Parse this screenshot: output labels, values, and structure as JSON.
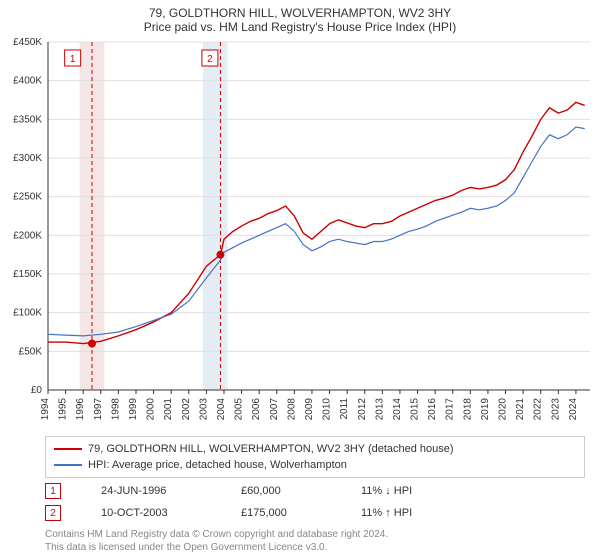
{
  "title": "79, GOLDTHORN HILL, WOLVERHAMPTON, WV2 3HY",
  "subtitle": "Price paid vs. HM Land Registry's House Price Index (HPI)",
  "chart": {
    "type": "line",
    "plot_bg": "#ffffff",
    "axis_color": "#333333",
    "grid_color": "#e0e0e0",
    "tick_fontsize": 10,
    "tick_color": "#333333",
    "ylim": [
      0,
      450
    ],
    "ytick_step": 50,
    "y_prefix": "£",
    "y_suffix": "K",
    "x_years": [
      1994,
      1995,
      1996,
      1997,
      1998,
      1999,
      2000,
      2001,
      2002,
      2003,
      2004,
      2005,
      2006,
      2007,
      2008,
      2009,
      2010,
      2011,
      2012,
      2013,
      2014,
      2015,
      2016,
      2017,
      2018,
      2019,
      2020,
      2021,
      2022,
      2023,
      2024
    ],
    "highlight_bands": [
      {
        "start": 1995.8,
        "end": 1997.2,
        "color": "#f4e6e6"
      },
      {
        "start": 2002.8,
        "end": 2004.2,
        "color": "#e6ecf4"
      }
    ],
    "vlines": [
      {
        "x": 1996.5,
        "color": "#cc0000",
        "dash": "4,3"
      },
      {
        "x": 2003.8,
        "color": "#cc0000",
        "dash": "4,3"
      }
    ],
    "marker_boxes": [
      {
        "label": "1",
        "x": 1995.4,
        "color": "#cc0000"
      },
      {
        "label": "2",
        "x": 2003.2,
        "color": "#cc0000"
      }
    ],
    "series": [
      {
        "name": "79, GOLDTHORN HILL, WOLVERHAMPTON, WV2 3HY (detached house)",
        "color": "#cc0000",
        "width": 1.4,
        "data": [
          [
            1994,
            62
          ],
          [
            1995,
            62
          ],
          [
            1996,
            60
          ],
          [
            1997,
            63
          ],
          [
            1998,
            70
          ],
          [
            1999,
            78
          ],
          [
            2000,
            88
          ],
          [
            2001,
            100
          ],
          [
            2002,
            125
          ],
          [
            2003,
            160
          ],
          [
            2003.8,
            175
          ],
          [
            2004,
            195
          ],
          [
            2004.5,
            205
          ],
          [
            2005,
            212
          ],
          [
            2005.5,
            218
          ],
          [
            2006,
            222
          ],
          [
            2006.5,
            228
          ],
          [
            2007,
            232
          ],
          [
            2007.5,
            238
          ],
          [
            2008,
            225
          ],
          [
            2008.5,
            203
          ],
          [
            2009,
            195
          ],
          [
            2009.5,
            205
          ],
          [
            2010,
            215
          ],
          [
            2010.5,
            220
          ],
          [
            2011,
            216
          ],
          [
            2011.5,
            212
          ],
          [
            2012,
            210
          ],
          [
            2012.5,
            215
          ],
          [
            2013,
            215
          ],
          [
            2013.5,
            218
          ],
          [
            2014,
            225
          ],
          [
            2014.5,
            230
          ],
          [
            2015,
            235
          ],
          [
            2015.5,
            240
          ],
          [
            2016,
            245
          ],
          [
            2016.5,
            248
          ],
          [
            2017,
            252
          ],
          [
            2017.5,
            258
          ],
          [
            2018,
            262
          ],
          [
            2018.5,
            260
          ],
          [
            2019,
            262
          ],
          [
            2019.5,
            265
          ],
          [
            2020,
            272
          ],
          [
            2020.5,
            285
          ],
          [
            2021,
            308
          ],
          [
            2021.5,
            328
          ],
          [
            2022,
            350
          ],
          [
            2022.5,
            365
          ],
          [
            2023,
            358
          ],
          [
            2023.5,
            362
          ],
          [
            2024,
            372
          ],
          [
            2024.5,
            368
          ]
        ]
      },
      {
        "name": "HPI: Average price, detached house, Wolverhampton",
        "color": "#4472c4",
        "width": 1.2,
        "data": [
          [
            1994,
            72
          ],
          [
            1995,
            71
          ],
          [
            1996,
            70
          ],
          [
            1997,
            72
          ],
          [
            1998,
            75
          ],
          [
            1999,
            82
          ],
          [
            2000,
            90
          ],
          [
            2001,
            98
          ],
          [
            2002,
            115
          ],
          [
            2003,
            145
          ],
          [
            2003.8,
            168
          ],
          [
            2004,
            178
          ],
          [
            2004.5,
            184
          ],
          [
            2005,
            190
          ],
          [
            2005.5,
            195
          ],
          [
            2006,
            200
          ],
          [
            2006.5,
            205
          ],
          [
            2007,
            210
          ],
          [
            2007.5,
            215
          ],
          [
            2008,
            205
          ],
          [
            2008.5,
            188
          ],
          [
            2009,
            180
          ],
          [
            2009.5,
            185
          ],
          [
            2010,
            192
          ],
          [
            2010.5,
            195
          ],
          [
            2011,
            192
          ],
          [
            2011.5,
            190
          ],
          [
            2012,
            188
          ],
          [
            2012.5,
            192
          ],
          [
            2013,
            192
          ],
          [
            2013.5,
            195
          ],
          [
            2014,
            200
          ],
          [
            2014.5,
            205
          ],
          [
            2015,
            208
          ],
          [
            2015.5,
            212
          ],
          [
            2016,
            218
          ],
          [
            2016.5,
            222
          ],
          [
            2017,
            226
          ],
          [
            2017.5,
            230
          ],
          [
            2018,
            235
          ],
          [
            2018.5,
            233
          ],
          [
            2019,
            235
          ],
          [
            2019.5,
            238
          ],
          [
            2020,
            245
          ],
          [
            2020.5,
            255
          ],
          [
            2021,
            275
          ],
          [
            2021.5,
            295
          ],
          [
            2022,
            315
          ],
          [
            2022.5,
            330
          ],
          [
            2023,
            325
          ],
          [
            2023.5,
            330
          ],
          [
            2024,
            340
          ],
          [
            2024.5,
            338
          ]
        ]
      }
    ],
    "sale_markers": [
      {
        "x": 1996.5,
        "y": 60,
        "color": "#cc0000",
        "r": 4
      },
      {
        "x": 2003.8,
        "y": 175,
        "color": "#cc0000",
        "r": 4
      }
    ]
  },
  "legend": {
    "s1": "79, GOLDTHORN HILL, WOLVERHAMPTON, WV2 3HY (detached house)",
    "s2": "HPI: Average price, detached house, Wolverhampton"
  },
  "transactions": [
    {
      "num": "1",
      "date": "24-JUN-1996",
      "price": "£60,000",
      "delta": "11% ↓ HPI"
    },
    {
      "num": "2",
      "date": "10-OCT-2003",
      "price": "£175,000",
      "delta": "11% ↑ HPI"
    }
  ],
  "footer": {
    "l1": "Contains HM Land Registry data © Crown copyright and database right 2024.",
    "l2": "This data is licensed under the Open Government Licence v3.0."
  }
}
